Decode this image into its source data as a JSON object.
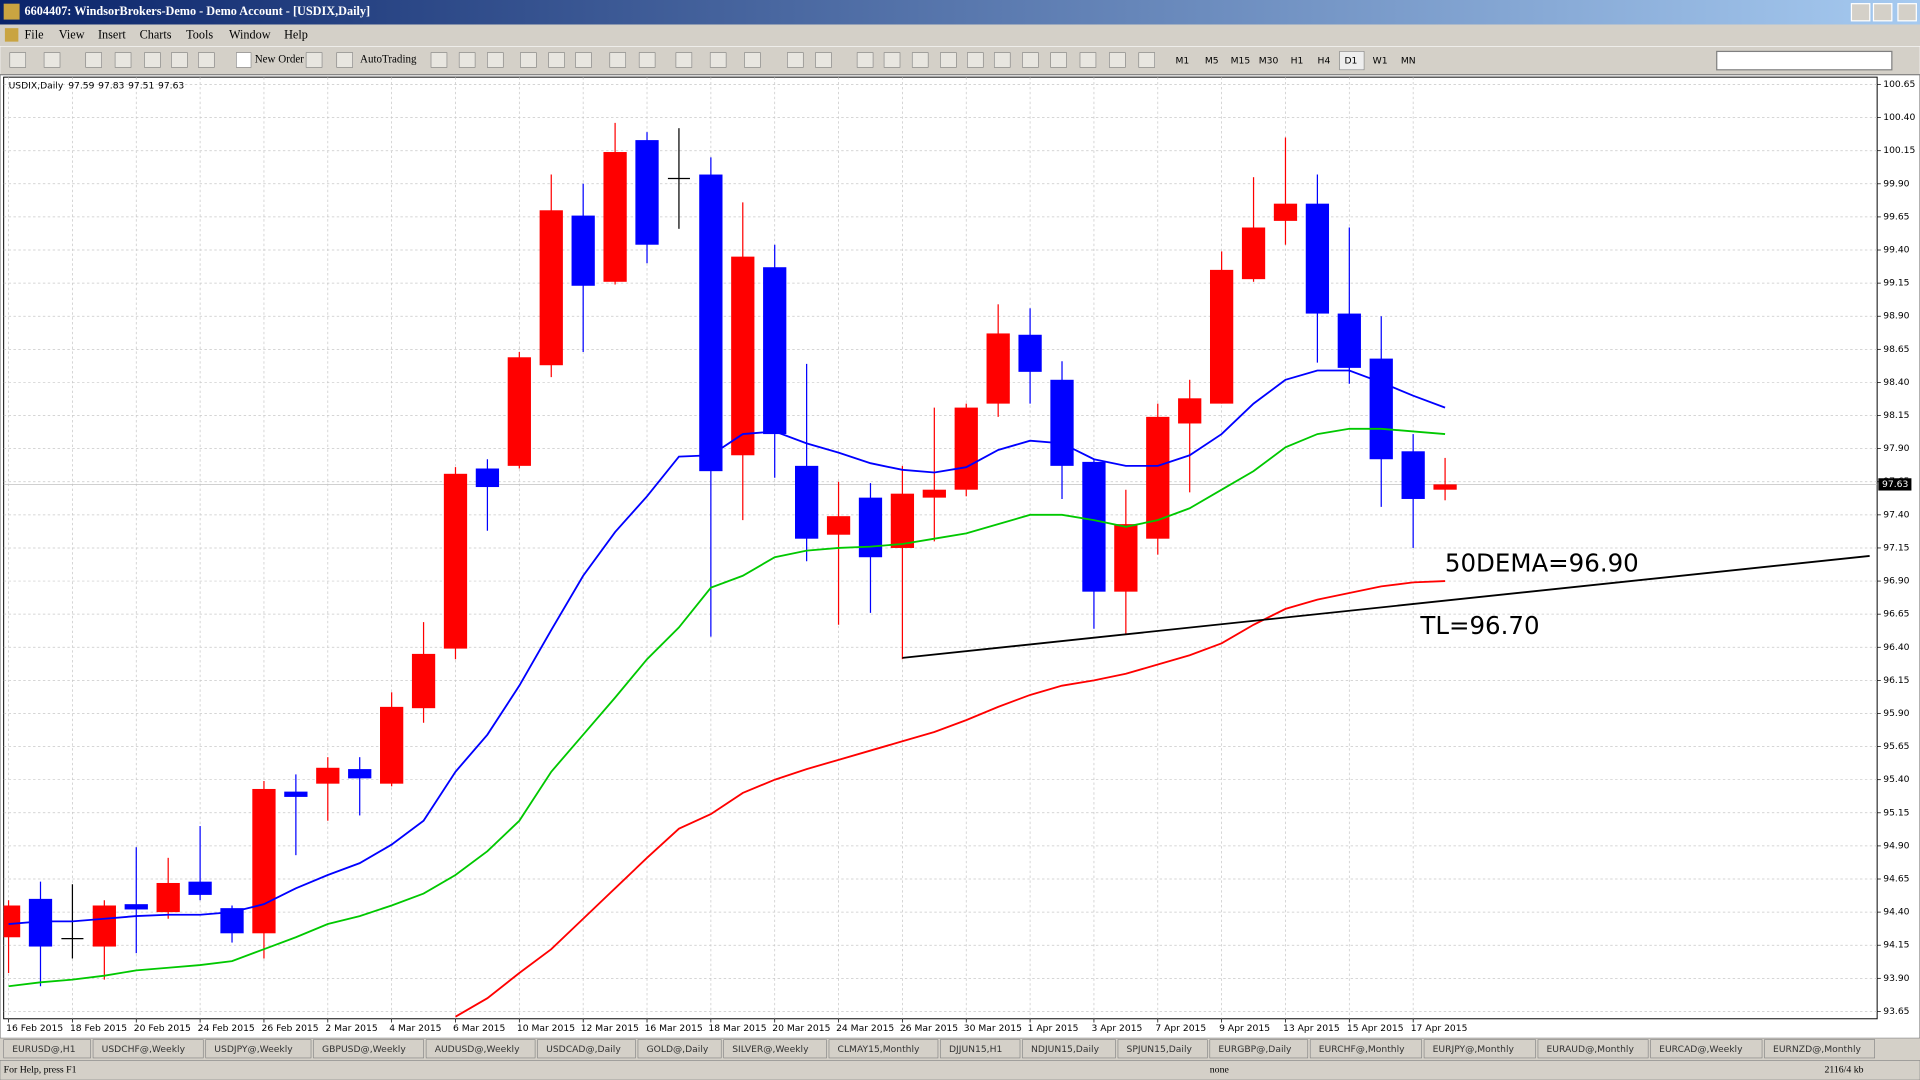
{
  "window": {
    "title": "6604407: WindsorBrokers-Demo - Demo Account - [USDIX,Daily]",
    "menu": [
      "File",
      "View",
      "Insert",
      "Charts",
      "Tools",
      "Window",
      "Help"
    ],
    "toolbar": {
      "new_order": "New Order",
      "auto_trading": "AutoTrading",
      "timeframes": [
        "M1",
        "M5",
        "M15",
        "M30",
        "H1",
        "H4",
        "D1",
        "W1",
        "MN"
      ]
    },
    "tabs": [
      "EURUSD@,H1",
      "USDCHF@,Weekly",
      "USDJPY@,Weekly",
      "GBPUSD@,Weekly",
      "AUDUSD@,Weekly",
      "USDCAD@,Daily",
      "GOLD@,Daily",
      "SILVER@,Weekly",
      "CLMAY15,Monthly",
      "DJJUN15,H1",
      "NDJUN15,Daily",
      "SPJUN15,Daily",
      "EURGBP@,Daily",
      "EURCHF@,Monthly",
      "EURJPY@,Monthly",
      "EURAUD@,Monthly",
      "EURCAD@,Weekly",
      "EURNZD@,Monthly"
    ],
    "status": {
      "help": "For Help, press F1",
      "profile": "none",
      "traffic": "2116/4 kb"
    }
  },
  "chart_data": {
    "type": "candlestick",
    "title": "USDIX,Daily",
    "categories": [
      "16 Feb 2015",
      null,
      "18 Feb 2015",
      null,
      "20 Feb 2015",
      null,
      "24 Feb 2015",
      null,
      "26 Feb 2015",
      null,
      "2 Mar 2015",
      null,
      "4 Mar 2015",
      null,
      "6 Mar 2015",
      null,
      "10 Mar 2015",
      null,
      "12 Mar 2015",
      null,
      "16 Mar 2015",
      null,
      "18 Mar 2015",
      null,
      "20 Mar 2015",
      null,
      "24 Mar 2015",
      null,
      "26 Mar 2015",
      null,
      "30 Mar 2015",
      null,
      "1 Apr 2015",
      null,
      "3 Apr 2015",
      null,
      "7 Apr 2015",
      null,
      "9 Apr 2015",
      null,
      "13 Apr 2015",
      null,
      "15 Apr 2015",
      null,
      "17 Apr 2015",
      null
    ],
    "open": [
      94.21,
      94.5,
      94.2,
      94.14,
      94.46,
      94.4,
      94.63,
      94.43,
      94.24,
      95.31,
      95.37,
      95.48,
      95.37,
      95.94,
      96.39,
      97.75,
      97.77,
      98.53,
      99.66,
      99.16,
      100.23,
      99.94,
      99.97,
      97.85,
      99.27,
      97.77,
      97.25,
      97.53,
      97.15,
      97.53,
      97.59,
      98.24,
      98.76,
      98.42,
      97.8,
      96.82,
      97.22,
      98.09,
      98.24,
      99.18,
      99.62,
      99.75,
      98.92,
      98.58,
      97.88,
      97.59
    ],
    "high": [
      94.49,
      94.63,
      94.61,
      94.49,
      94.89,
      94.81,
      95.05,
      94.45,
      95.39,
      95.44,
      95.57,
      95.57,
      96.06,
      96.59,
      97.76,
      97.82,
      98.63,
      99.97,
      99.9,
      100.36,
      100.29,
      100.32,
      100.1,
      99.76,
      99.44,
      98.54,
      97.65,
      97.64,
      97.77,
      98.21,
      98.24,
      98.99,
      98.96,
      98.56,
      97.82,
      97.59,
      98.24,
      98.42,
      99.39,
      99.95,
      100.25,
      99.97,
      99.57,
      98.9,
      98.01,
      97.83
    ],
    "low": [
      93.94,
      93.84,
      94.05,
      93.89,
      94.09,
      94.35,
      94.49,
      94.17,
      94.05,
      94.83,
      95.09,
      95.13,
      95.35,
      95.83,
      96.31,
      97.28,
      97.75,
      98.44,
      98.63,
      99.14,
      99.3,
      99.56,
      96.48,
      97.36,
      97.68,
      97.05,
      96.57,
      96.66,
      96.31,
      97.2,
      97.54,
      98.14,
      98.24,
      97.52,
      96.54,
      96.5,
      97.1,
      97.57,
      98.24,
      99.16,
      99.44,
      98.55,
      98.39,
      97.46,
      97.15,
      97.51
    ],
    "close": [
      94.45,
      94.14,
      94.2,
      94.45,
      94.42,
      94.62,
      94.53,
      94.24,
      95.33,
      95.27,
      95.49,
      95.41,
      95.95,
      96.35,
      97.71,
      97.61,
      98.59,
      99.7,
      99.13,
      100.14,
      99.44,
      99.94,
      97.73,
      99.35,
      98.01,
      97.22,
      97.39,
      97.08,
      97.56,
      97.59,
      98.21,
      98.77,
      98.48,
      97.77,
      96.82,
      97.33,
      98.14,
      98.28,
      99.25,
      99.57,
      99.75,
      98.92,
      98.51,
      97.82,
      97.52,
      97.63
    ],
    "up_color": "#ff0000",
    "down_color": "#0000ff",
    "doji_color": "#000000",
    "lines": [
      {
        "color": "#0000ff",
        "values": [
          94.31,
          94.33,
          94.33,
          94.35,
          94.37,
          94.38,
          94.38,
          94.4,
          94.46,
          94.58,
          94.68,
          94.77,
          94.91,
          95.09,
          95.46,
          95.74,
          96.11,
          96.53,
          96.94,
          97.27,
          97.54,
          97.84,
          97.85,
          98.01,
          98.03,
          97.94,
          97.87,
          97.79,
          97.74,
          97.72,
          97.76,
          97.89,
          97.96,
          97.94,
          97.82,
          97.77,
          97.77,
          97.85,
          98.01,
          98.24,
          98.42,
          98.49,
          98.49,
          98.4,
          98.3,
          98.21
        ]
      },
      {
        "color": "#00c800",
        "values": [
          93.84,
          93.87,
          93.89,
          93.92,
          93.96,
          93.98,
          94.0,
          94.03,
          94.12,
          94.21,
          94.31,
          94.37,
          94.45,
          94.54,
          94.68,
          94.86,
          95.09,
          95.46,
          95.74,
          96.02,
          96.31,
          96.55,
          96.85,
          96.94,
          97.08,
          97.13,
          97.15,
          97.16,
          97.18,
          97.22,
          97.26,
          97.33,
          97.4,
          97.4,
          97.36,
          97.31,
          97.36,
          97.45,
          97.59,
          97.73,
          97.91,
          98.01,
          98.05,
          98.05,
          98.03,
          98.01
        ]
      },
      {
        "color": "#ff0000",
        "values": [
          null,
          null,
          null,
          null,
          null,
          null,
          null,
          null,
          null,
          null,
          null,
          null,
          null,
          null,
          93.61,
          93.75,
          93.94,
          94.12,
          94.35,
          94.58,
          94.81,
          95.03,
          95.14,
          95.3,
          95.4,
          95.48,
          95.55,
          95.62,
          95.69,
          95.76,
          95.85,
          95.95,
          96.04,
          96.11,
          96.15,
          96.2,
          96.27,
          96.34,
          96.43,
          96.57,
          96.69,
          96.76,
          96.81,
          96.86,
          96.89,
          96.9
        ]
      }
    ],
    "trendline": {
      "color": "#000000",
      "x": [
        28,
        58.3
      ],
      "values": [
        96.32,
        97.09
      ]
    },
    "annotations": [
      "50DEMA=96.90",
      "TL=96.70"
    ],
    "ylim": [
      93.65,
      100.77
    ],
    "yticks": [
      93.65,
      {
        "value": 93.9,
        "label": "93.90"
      },
      94.15,
      {
        "value": 94.4,
        "label": "94.40"
      },
      94.65,
      {
        "value": 94.9,
        "label": "94.90"
      },
      95.15,
      {
        "value": 95.4,
        "label": "95.40"
      },
      95.65,
      {
        "value": 95.9,
        "label": "95.90"
      },
      96.15,
      {
        "value": 96.4,
        "label": "96.40"
      },
      96.65,
      {
        "value": 96.9,
        "label": "96.90"
      },
      97.15,
      {
        "value": 97.4,
        "label": "97.40"
      },
      97.65,
      {
        "value": 97.9,
        "label": "97.90"
      },
      98.15,
      {
        "value": 98.4,
        "label": "98.40"
      },
      98.65,
      {
        "value": 98.9,
        "label": "98.90"
      },
      99.15,
      {
        "value": 99.4,
        "label": "99.40"
      },
      99.65,
      {
        "value": 99.9,
        "label": "99.90"
      },
      100.15,
      {
        "value": 100.4,
        "label": "100.40"
      },
      100.65
    ],
    "grid": true
  }
}
